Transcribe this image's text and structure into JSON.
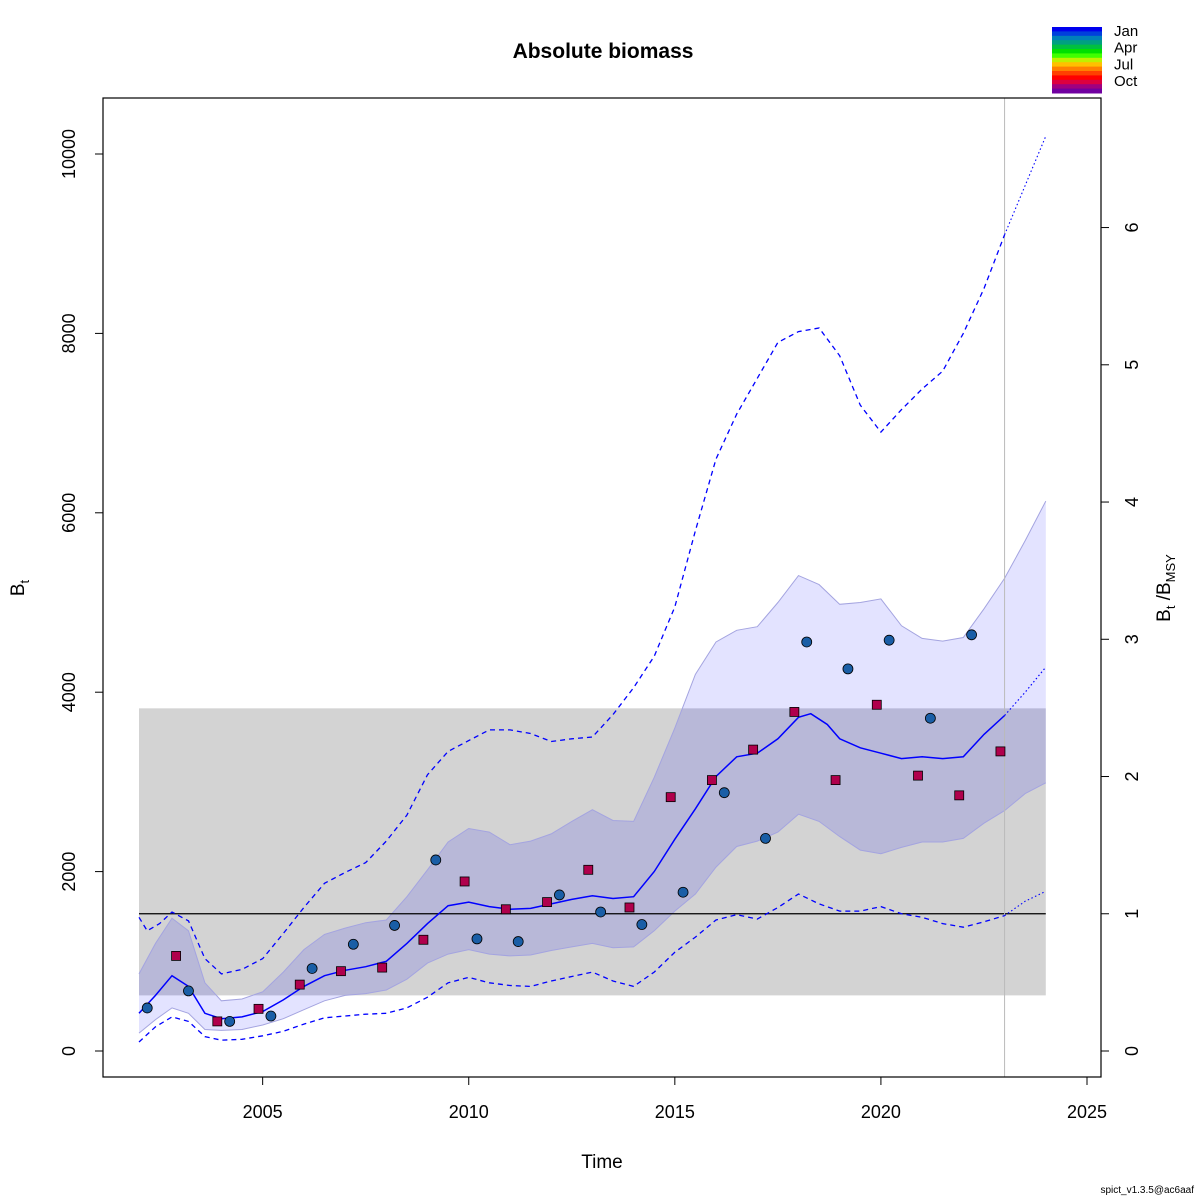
{
  "chart_data": {
    "type": "line",
    "title": "Absolute biomass",
    "xlabel": "Time",
    "ylabel": "B",
    "ylabel_sub": "t",
    "y2label_parts": {
      "b1": "B",
      "s1": "t",
      "slash": " /B",
      "s2": "MSY"
    },
    "xlim": [
      2002,
      2025
    ],
    "ylim": [
      0,
      10500
    ],
    "x_ticks": [
      2005,
      2010,
      2015,
      2020,
      2025
    ],
    "y_ticks": [
      0,
      2000,
      4000,
      6000,
      8000,
      10000
    ],
    "y2_ticks": [
      0,
      1,
      2,
      3,
      4,
      5,
      6
    ],
    "bmsy": 1530,
    "current_time": 2023.0,
    "colors": {
      "estimate_line": "#0000ff",
      "ci_fill": "#dedeff",
      "ci_edge": "#a4a4e0",
      "overlap_fill": "#b8b8d8",
      "bmsy_ci_fill": "#d3d3d3",
      "bmsy_line": "#000000",
      "index_circle": "#1a5ea6",
      "index_square": "#b0004c",
      "current_time_line": "#bbbbbb"
    },
    "bmsy_ci": {
      "lower": 620,
      "upper": 3820
    },
    "series": [
      {
        "name": "estimate",
        "points": [
          [
            2002.0,
            420
          ],
          [
            2002.4,
            620
          ],
          [
            2002.8,
            840
          ],
          [
            2003.2,
            720
          ],
          [
            2003.6,
            420
          ],
          [
            2004.0,
            360
          ],
          [
            2004.5,
            380
          ],
          [
            2005.0,
            440
          ],
          [
            2005.5,
            570
          ],
          [
            2006.0,
            720
          ],
          [
            2006.5,
            840
          ],
          [
            2007.0,
            900
          ],
          [
            2007.5,
            940
          ],
          [
            2008.0,
            1000
          ],
          [
            2008.5,
            1200
          ],
          [
            2009.0,
            1420
          ],
          [
            2009.5,
            1620
          ],
          [
            2010.0,
            1660
          ],
          [
            2010.5,
            1610
          ],
          [
            2011.0,
            1580
          ],
          [
            2011.5,
            1590
          ],
          [
            2012.0,
            1640
          ],
          [
            2012.5,
            1690
          ],
          [
            2013.0,
            1730
          ],
          [
            2013.5,
            1700
          ],
          [
            2014.0,
            1720
          ],
          [
            2014.5,
            2000
          ],
          [
            2015.0,
            2360
          ],
          [
            2015.5,
            2700
          ],
          [
            2016.0,
            3060
          ],
          [
            2016.5,
            3280
          ],
          [
            2017.0,
            3320
          ],
          [
            2017.5,
            3480
          ],
          [
            2018.0,
            3720
          ],
          [
            2018.3,
            3760
          ],
          [
            2018.7,
            3640
          ],
          [
            2019.0,
            3480
          ],
          [
            2019.5,
            3380
          ],
          [
            2020.0,
            3320
          ],
          [
            2020.5,
            3260
          ],
          [
            2021.0,
            3280
          ],
          [
            2021.5,
            3260
          ],
          [
            2022.0,
            3280
          ],
          [
            2022.5,
            3530
          ],
          [
            2023.0,
            3740
          ]
        ]
      },
      {
        "name": "projection",
        "points": [
          [
            2023.0,
            3740
          ],
          [
            2023.5,
            4000
          ],
          [
            2024.0,
            4280
          ]
        ]
      }
    ],
    "ci_band": {
      "upper": [
        [
          2002.0,
          860
        ],
        [
          2002.4,
          1200
        ],
        [
          2002.8,
          1480
        ],
        [
          2003.2,
          1340
        ],
        [
          2003.6,
          760
        ],
        [
          2004.0,
          560
        ],
        [
          2004.5,
          580
        ],
        [
          2005.0,
          660
        ],
        [
          2005.5,
          880
        ],
        [
          2006.0,
          1130
        ],
        [
          2006.5,
          1300
        ],
        [
          2007.0,
          1370
        ],
        [
          2007.5,
          1430
        ],
        [
          2008.0,
          1460
        ],
        [
          2008.5,
          1720
        ],
        [
          2009.0,
          2020
        ],
        [
          2009.5,
          2330
        ],
        [
          2010.0,
          2480
        ],
        [
          2010.5,
          2440
        ],
        [
          2011.0,
          2300
        ],
        [
          2011.5,
          2340
        ],
        [
          2012.0,
          2420
        ],
        [
          2012.5,
          2560
        ],
        [
          2013.0,
          2690
        ],
        [
          2013.5,
          2570
        ],
        [
          2014.0,
          2560
        ],
        [
          2014.5,
          3050
        ],
        [
          2015.0,
          3600
        ],
        [
          2015.5,
          4200
        ],
        [
          2016.0,
          4560
        ],
        [
          2016.5,
          4690
        ],
        [
          2017.0,
          4730
        ],
        [
          2017.5,
          5000
        ],
        [
          2018.0,
          5300
        ],
        [
          2018.5,
          5200
        ],
        [
          2019.0,
          4980
        ],
        [
          2019.5,
          5000
        ],
        [
          2020.0,
          5040
        ],
        [
          2020.5,
          4740
        ],
        [
          2021.0,
          4600
        ],
        [
          2021.5,
          4570
        ],
        [
          2022.0,
          4610
        ],
        [
          2022.5,
          4930
        ],
        [
          2023.0,
          5270
        ],
        [
          2023.5,
          5690
        ],
        [
          2024.0,
          6130
        ]
      ],
      "lower": [
        [
          2002.0,
          200
        ],
        [
          2002.4,
          350
        ],
        [
          2002.8,
          480
        ],
        [
          2003.2,
          420
        ],
        [
          2003.6,
          240
        ],
        [
          2004.0,
          230
        ],
        [
          2004.5,
          240
        ],
        [
          2005.0,
          290
        ],
        [
          2005.5,
          360
        ],
        [
          2006.0,
          460
        ],
        [
          2006.5,
          560
        ],
        [
          2007.0,
          620
        ],
        [
          2007.5,
          640
        ],
        [
          2008.0,
          680
        ],
        [
          2008.5,
          800
        ],
        [
          2009.0,
          980
        ],
        [
          2009.5,
          1080
        ],
        [
          2010.0,
          1130
        ],
        [
          2010.5,
          1080
        ],
        [
          2011.0,
          1060
        ],
        [
          2011.5,
          1070
        ],
        [
          2012.0,
          1120
        ],
        [
          2012.5,
          1160
        ],
        [
          2013.0,
          1200
        ],
        [
          2013.5,
          1150
        ],
        [
          2014.0,
          1160
        ],
        [
          2014.5,
          1340
        ],
        [
          2015.0,
          1560
        ],
        [
          2015.5,
          1750
        ],
        [
          2016.0,
          2050
        ],
        [
          2016.5,
          2280
        ],
        [
          2017.0,
          2340
        ],
        [
          2017.5,
          2440
        ],
        [
          2018.0,
          2640
        ],
        [
          2018.5,
          2560
        ],
        [
          2019.0,
          2390
        ],
        [
          2019.5,
          2240
        ],
        [
          2020.0,
          2200
        ],
        [
          2020.5,
          2270
        ],
        [
          2021.0,
          2330
        ],
        [
          2021.5,
          2330
        ],
        [
          2022.0,
          2370
        ],
        [
          2022.5,
          2540
        ],
        [
          2023.0,
          2680
        ],
        [
          2023.5,
          2870
        ],
        [
          2024.0,
          2990
        ]
      ]
    },
    "ci_dashed": {
      "upper": [
        [
          2002.0,
          1490
        ],
        [
          2002.2,
          1340
        ],
        [
          2002.5,
          1420
        ],
        [
          2002.8,
          1550
        ],
        [
          2003.2,
          1450
        ],
        [
          2003.6,
          1030
        ],
        [
          2004.0,
          860
        ],
        [
          2004.5,
          910
        ],
        [
          2005.0,
          1030
        ],
        [
          2005.5,
          1310
        ],
        [
          2006.0,
          1600
        ],
        [
          2006.5,
          1870
        ],
        [
          2007.0,
          1990
        ],
        [
          2007.5,
          2100
        ],
        [
          2008.0,
          2340
        ],
        [
          2008.5,
          2630
        ],
        [
          2009.0,
          3080
        ],
        [
          2009.5,
          3340
        ],
        [
          2010.0,
          3460
        ],
        [
          2010.5,
          3580
        ],
        [
          2011.0,
          3580
        ],
        [
          2011.5,
          3540
        ],
        [
          2012.0,
          3450
        ],
        [
          2012.5,
          3480
        ],
        [
          2013.0,
          3500
        ],
        [
          2013.5,
          3750
        ],
        [
          2014.0,
          4050
        ],
        [
          2014.5,
          4400
        ],
        [
          2015.0,
          4950
        ],
        [
          2015.5,
          5800
        ],
        [
          2016.0,
          6600
        ],
        [
          2016.5,
          7100
        ],
        [
          2017.0,
          7500
        ],
        [
          2017.5,
          7900
        ],
        [
          2018.0,
          8020
        ],
        [
          2018.5,
          8060
        ],
        [
          2019.0,
          7750
        ],
        [
          2019.5,
          7200
        ],
        [
          2020.0,
          6900
        ],
        [
          2020.5,
          7150
        ],
        [
          2021.0,
          7380
        ],
        [
          2021.5,
          7580
        ],
        [
          2022.0,
          8000
        ],
        [
          2022.5,
          8500
        ],
        [
          2023.0,
          9100
        ]
      ],
      "lower": [
        [
          2002.0,
          100
        ],
        [
          2002.4,
          270
        ],
        [
          2002.8,
          380
        ],
        [
          2003.2,
          330
        ],
        [
          2003.6,
          160
        ],
        [
          2004.0,
          120
        ],
        [
          2004.5,
          130
        ],
        [
          2005.0,
          170
        ],
        [
          2005.5,
          220
        ],
        [
          2006.0,
          300
        ],
        [
          2006.5,
          370
        ],
        [
          2007.0,
          390
        ],
        [
          2007.5,
          410
        ],
        [
          2008.0,
          420
        ],
        [
          2008.5,
          480
        ],
        [
          2009.0,
          600
        ],
        [
          2009.5,
          760
        ],
        [
          2010.0,
          820
        ],
        [
          2010.5,
          760
        ],
        [
          2011.0,
          730
        ],
        [
          2011.5,
          720
        ],
        [
          2012.0,
          780
        ],
        [
          2012.5,
          830
        ],
        [
          2013.0,
          880
        ],
        [
          2013.5,
          780
        ],
        [
          2014.0,
          720
        ],
        [
          2014.5,
          880
        ],
        [
          2015.0,
          1100
        ],
        [
          2015.5,
          1270
        ],
        [
          2016.0,
          1460
        ],
        [
          2016.5,
          1520
        ],
        [
          2017.0,
          1470
        ],
        [
          2017.5,
          1600
        ],
        [
          2018.0,
          1750
        ],
        [
          2018.5,
          1640
        ],
        [
          2019.0,
          1560
        ],
        [
          2019.5,
          1560
        ],
        [
          2020.0,
          1610
        ],
        [
          2020.5,
          1530
        ],
        [
          2021.0,
          1490
        ],
        [
          2021.5,
          1420
        ],
        [
          2022.0,
          1380
        ],
        [
          2022.5,
          1440
        ],
        [
          2023.0,
          1510
        ]
      ]
    },
    "ci_dotted": {
      "upper": [
        [
          2023.0,
          9100
        ],
        [
          2023.5,
          9650
        ],
        [
          2024.0,
          10200
        ]
      ],
      "lower": [
        [
          2023.0,
          1510
        ],
        [
          2023.5,
          1670
        ],
        [
          2024.0,
          1780
        ]
      ]
    },
    "index1": [
      [
        2002.2,
        480
      ],
      [
        2003.2,
        670
      ],
      [
        2004.2,
        330
      ],
      [
        2005.2,
        390
      ],
      [
        2006.2,
        920
      ],
      [
        2007.2,
        1190
      ],
      [
        2008.2,
        1400
      ],
      [
        2009.2,
        2130
      ],
      [
        2010.2,
        1250
      ],
      [
        2011.2,
        1220
      ],
      [
        2012.2,
        1740
      ],
      [
        2013.2,
        1550
      ],
      [
        2014.2,
        1410
      ],
      [
        2015.2,
        1770
      ],
      [
        2016.2,
        2880
      ],
      [
        2017.2,
        2370
      ],
      [
        2018.2,
        4560
      ],
      [
        2019.2,
        4260
      ],
      [
        2020.2,
        4580
      ],
      [
        2021.2,
        3710
      ],
      [
        2022.2,
        4640
      ]
    ],
    "index2": [
      [
        2002.9,
        1060
      ],
      [
        2003.9,
        330
      ],
      [
        2004.9,
        470
      ],
      [
        2005.9,
        740
      ],
      [
        2006.9,
        890
      ],
      [
        2007.9,
        930
      ],
      [
        2008.9,
        1240
      ],
      [
        2009.9,
        1890
      ],
      [
        2010.9,
        1580
      ],
      [
        2011.9,
        1660
      ],
      [
        2012.9,
        2020
      ],
      [
        2013.9,
        1600
      ],
      [
        2014.9,
        2830
      ],
      [
        2015.9,
        3020
      ],
      [
        2016.9,
        3360
      ],
      [
        2017.9,
        3780
      ],
      [
        2018.9,
        3020
      ],
      [
        2019.9,
        3860
      ],
      [
        2020.9,
        3070
      ],
      [
        2021.9,
        2850
      ],
      [
        2022.9,
        3340
      ]
    ]
  },
  "legend": {
    "labels": [
      "Jan",
      "Apr",
      "Jul",
      "Oct"
    ],
    "colors": [
      "#0000ee",
      "#0040dd",
      "#0080bb",
      "#00a080",
      "#00c040",
      "#00e000",
      "#40ff00",
      "#c0f000",
      "#ffc000",
      "#ff8000",
      "#ff4000",
      "#ff0000",
      "#dd0040",
      "#a00080",
      "#7000a0"
    ]
  },
  "footer": "spict_v1.3.5@ac6aaf"
}
